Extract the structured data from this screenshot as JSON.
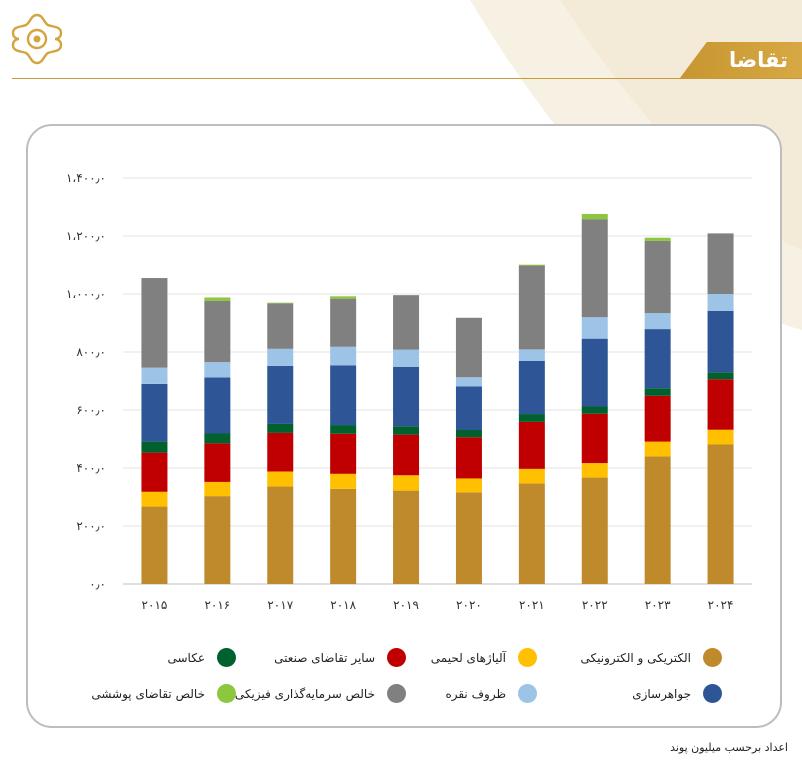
{
  "header": {
    "title": "تقاضا"
  },
  "footnote": "اعداد برحسب میلیون پوند",
  "chart_data": {
    "type": "bar",
    "stacked": true,
    "categories": [
      "۲۰۱۵",
      "۲۰۱۶",
      "۲۰۱۷",
      "۲۰۱۸",
      "۲۰۱۹",
      "۲۰۲۰",
      "۲۰۲۱",
      "۲۰۲۲",
      "۲۰۲۳",
      "۲۰۲۴"
    ],
    "ylim": [
      0,
      1400
    ],
    "yticks": [
      0,
      200,
      400,
      600,
      800,
      1000,
      1200,
      1400
    ],
    "ytick_labels": [
      "۰٫۰",
      "۲۰۰٫۰",
      "۴۰۰٫۰",
      "۶۰۰٫۰",
      "۸۰۰٫۰",
      "۱،۰۰۰٫۰",
      "۱،۲۰۰٫۰",
      "۱،۴۰۰٫۰"
    ],
    "grid": true,
    "legend_position": "bottom",
    "series": [
      {
        "name": "الکتریکی و الکترونیکی",
        "color": "#bf8a2c",
        "values": [
          267,
          303,
          336,
          328,
          322,
          316,
          347,
          367,
          440,
          481
        ]
      },
      {
        "name": "آلیاژهای لحیمی",
        "color": "#ffc000",
        "values": [
          51,
          49,
          52,
          52,
          53,
          48,
          50,
          50,
          51,
          51
        ]
      },
      {
        "name": "سایر تقاضای صنعتی",
        "color": "#c00000",
        "values": [
          135,
          133,
          133,
          138,
          140,
          142,
          162,
          170,
          158,
          174
        ]
      },
      {
        "name": "عکاسی",
        "color": "#00612e",
        "values": [
          38,
          34,
          31,
          30,
          29,
          25,
          27,
          25,
          26,
          24
        ]
      },
      {
        "name": "جواهرسازی",
        "color": "#2e5696",
        "values": [
          199,
          193,
          200,
          206,
          205,
          150,
          183,
          234,
          204,
          212
        ]
      },
      {
        "name": "ظروف نقره",
        "color": "#9dc3e6",
        "values": [
          56,
          53,
          59,
          64,
          59,
          32,
          40,
          74,
          55,
          58
        ]
      },
      {
        "name": "خالص سرمایه‌گذاری فیزیکی",
        "color": "#808080",
        "values": [
          309,
          211,
          157,
          166,
          188,
          205,
          289,
          338,
          249,
          209
        ]
      },
      {
        "name": "خالص تقاضای پوششی",
        "color": "#8dc63f",
        "values": [
          0,
          12,
          2,
          8,
          0,
          0,
          3,
          18,
          11,
          0
        ]
      }
    ]
  }
}
